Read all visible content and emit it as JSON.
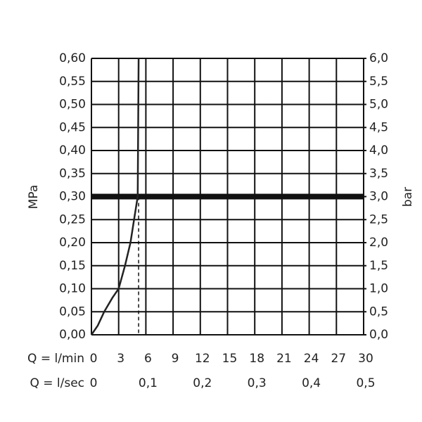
{
  "chart_data": {
    "type": "line",
    "x": [
      0,
      0.7,
      1.4,
      2.3,
      3.0,
      3.7,
      4.3,
      4.7,
      5.1,
      5.2
    ],
    "values": [
      0,
      0.02,
      0.05,
      0.08,
      0.1,
      0.15,
      0.2,
      0.25,
      0.3,
      0.6
    ],
    "color": "#222",
    "xlim": [
      0,
      30
    ],
    "xticks": [
      0,
      3,
      6,
      9,
      12,
      15,
      18,
      21,
      24,
      27,
      30
    ],
    "x_label": "Q = l/min",
    "x2lim": [
      0,
      0.5
    ],
    "x2ticks": [
      0,
      {
        "value": 0.1,
        "label": "0,1"
      },
      {
        "value": 0.2,
        "label": "0,2"
      },
      {
        "value": 0.3,
        "label": "0,3"
      },
      {
        "value": 0.4,
        "label": "0,4"
      },
      {
        "value": 0.5,
        "label": "0,5"
      }
    ],
    "x2_label": "Q = l/sec",
    "ylim": [
      0,
      0.6
    ],
    "yticks": [
      {
        "value": 0,
        "label": "0,00"
      },
      {
        "value": 0.05,
        "label": "0,05"
      },
      {
        "value": 0.1,
        "label": "0,10"
      },
      {
        "value": 0.15,
        "label": "0,15"
      },
      {
        "value": 0.2,
        "label": "0,20"
      },
      {
        "value": 0.25,
        "label": "0,25"
      },
      {
        "value": 0.3,
        "label": "0,30"
      },
      {
        "value": 0.35,
        "label": "0,35"
      },
      {
        "value": 0.4,
        "label": "0,40"
      },
      {
        "value": 0.45,
        "label": "0,45"
      },
      {
        "value": 0.5,
        "label": "0,50"
      },
      {
        "value": 0.55,
        "label": "0,55"
      },
      {
        "value": 0.6,
        "label": "0,60"
      }
    ],
    "y_label": "MPa",
    "y2lim": [
      0,
      6
    ],
    "y2ticks": [
      {
        "value": 0,
        "label": "0,0"
      },
      {
        "value": 0.5,
        "label": "0,5"
      },
      {
        "value": 1,
        "label": "1,0"
      },
      {
        "value": 1.5,
        "label": "1,5"
      },
      {
        "value": 2,
        "label": "2,0"
      },
      {
        "value": 2.5,
        "label": "2,5"
      },
      {
        "value": 3,
        "label": "3,0"
      },
      {
        "value": 3.5,
        "label": "3,5"
      },
      {
        "value": 4,
        "label": "4,0"
      },
      {
        "value": 4.5,
        "label": "4,5"
      },
      {
        "value": 5,
        "label": "5,0"
      },
      {
        "value": 5.5,
        "label": "5,5"
      },
      {
        "value": 6,
        "label": "6,0"
      }
    ],
    "y2_label": "bar",
    "reference_y": 0.3,
    "reference_x": 5.2,
    "grid": true
  }
}
